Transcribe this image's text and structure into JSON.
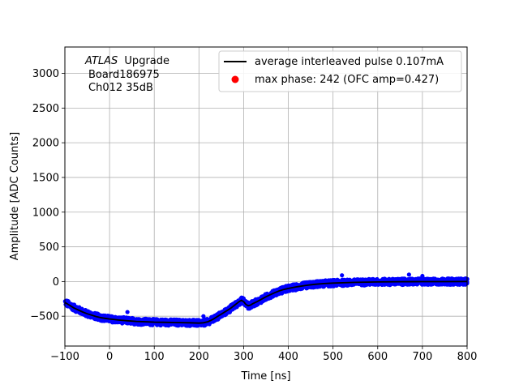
{
  "chart_data": {
    "type": "scatter",
    "xlabel": "Time [ns]",
    "ylabel": "Amplitude [ADC Counts]",
    "xlim": [
      -100,
      800
    ],
    "ylim": [
      -930,
      3380
    ],
    "xticks": [
      -100,
      0,
      100,
      200,
      300,
      400,
      500,
      600,
      700,
      800
    ],
    "yticks": [
      -500,
      0,
      500,
      1000,
      1500,
      2000,
      2500,
      3000
    ],
    "grid": true,
    "legend_position": "top-right",
    "annotation": {
      "atlas": "ATLAS",
      "upgrade": "Upgrade",
      "board": "Board186975",
      "channel": "Ch012 35dB"
    },
    "series": [
      {
        "name": "average interleaved pulse 0.107mA",
        "kind": "line",
        "color": "#000000",
        "x": [
          -100,
          -90,
          -80,
          -70,
          -60,
          -50,
          -40,
          -30,
          -20,
          -10,
          0,
          20,
          40,
          60,
          80,
          100,
          120,
          140,
          160,
          180,
          200,
          210,
          220,
          230,
          240,
          250,
          260,
          270,
          280,
          290,
          295,
          300,
          305,
          310,
          315,
          320,
          330,
          340,
          350,
          360,
          370,
          380,
          390,
          400,
          420,
          440,
          460,
          480,
          500,
          550,
          600,
          650,
          700,
          750,
          800
        ],
        "y": [
          -300,
          -340,
          -380,
          -410,
          -440,
          -465,
          -485,
          -505,
          -520,
          -530,
          -540,
          -555,
          -565,
          -575,
          -580,
          -585,
          -588,
          -590,
          -592,
          -595,
          -600,
          -595,
          -580,
          -550,
          -510,
          -470,
          -430,
          -390,
          -340,
          -290,
          -270,
          -290,
          -330,
          -350,
          -340,
          -320,
          -290,
          -255,
          -220,
          -190,
          -160,
          -135,
          -115,
          -100,
          -75,
          -55,
          -40,
          -30,
          -22,
          -12,
          -6,
          -3,
          -2,
          -1,
          0
        ]
      },
      {
        "name": "",
        "kind": "scatter-band",
        "color": "#0000ff",
        "spread": 45
      },
      {
        "name": "max phase: 242 (OFC amp=0.427)",
        "kind": "marker",
        "color": "#ff0000"
      }
    ]
  }
}
